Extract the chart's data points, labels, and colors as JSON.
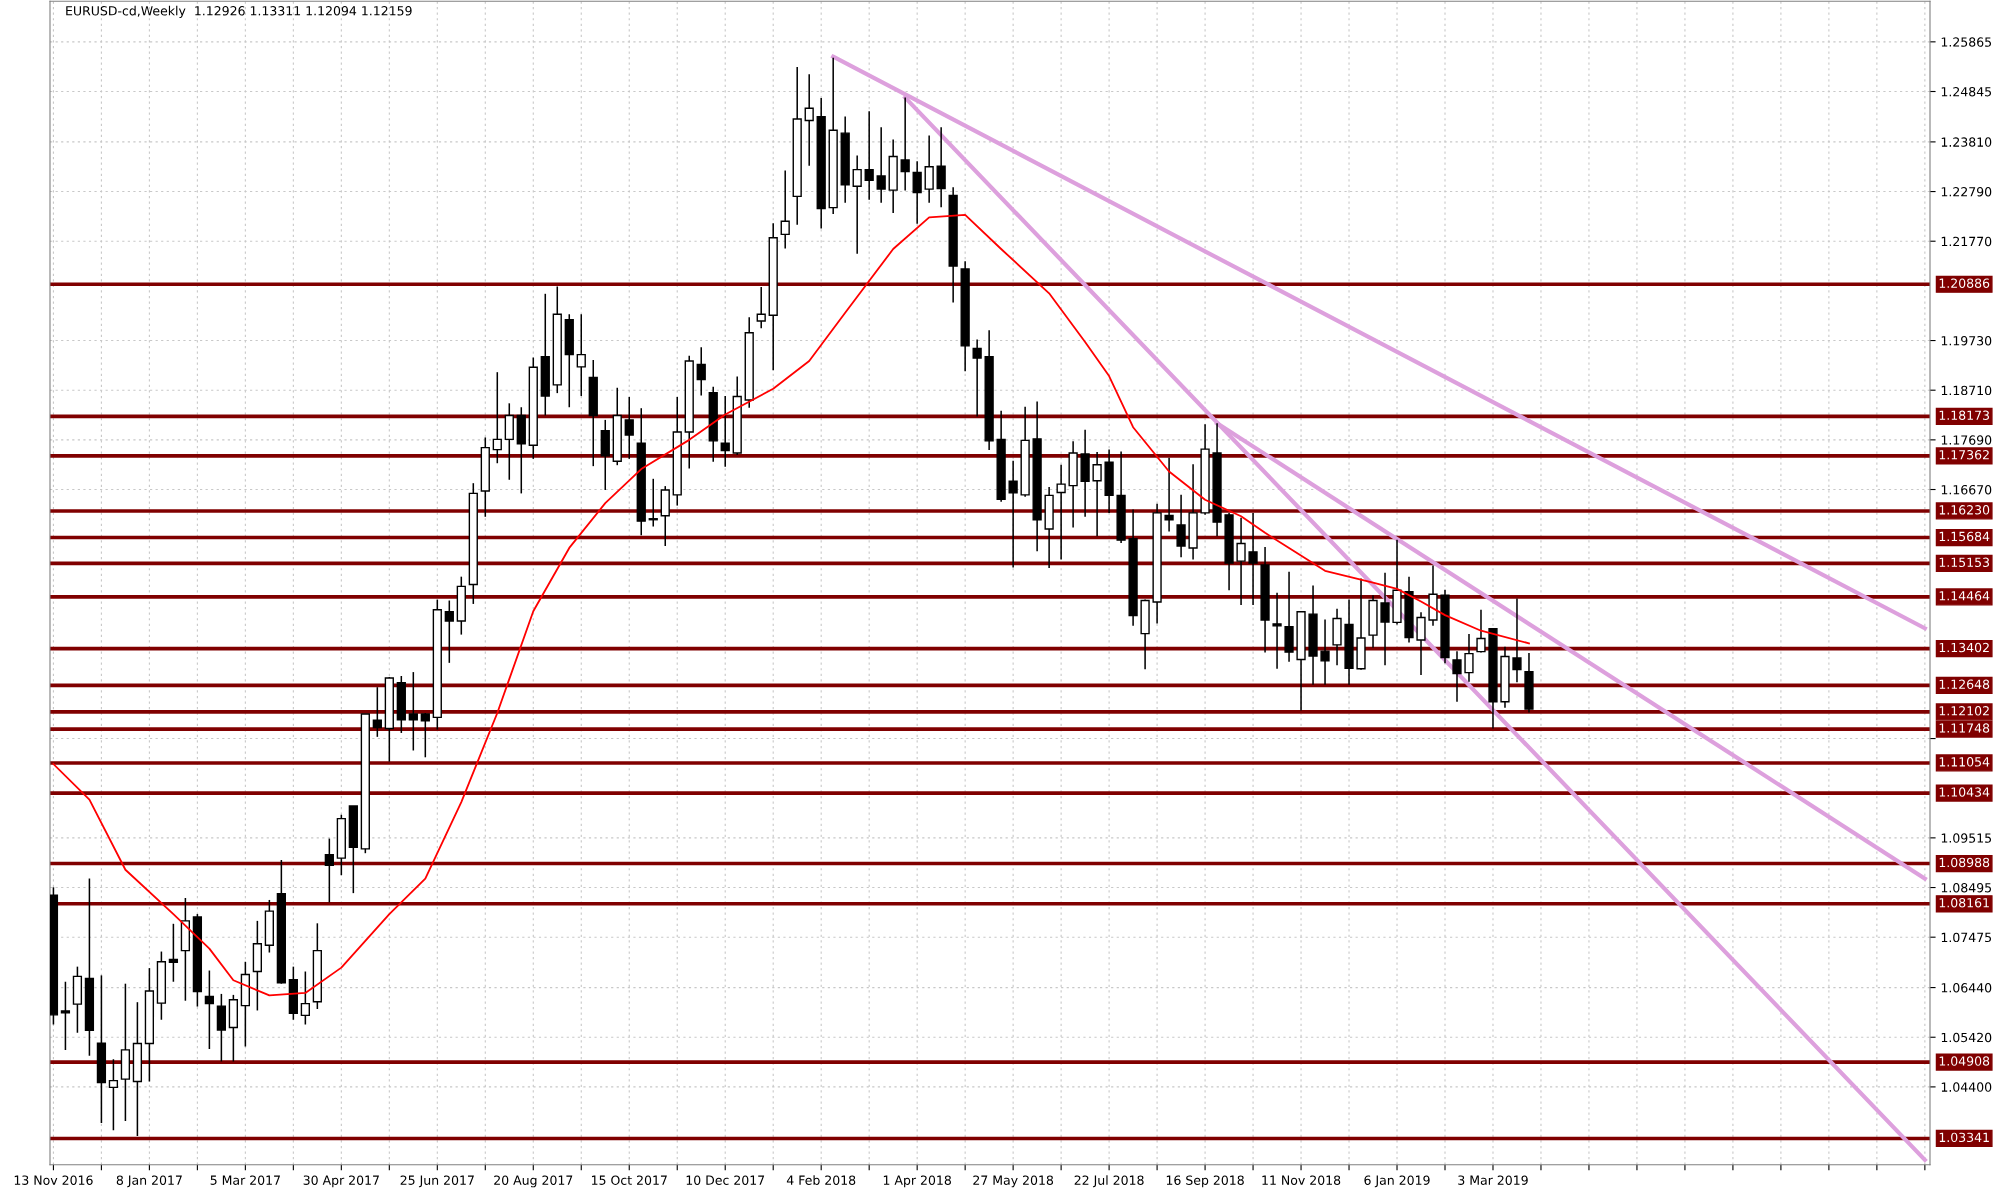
{
  "chart_data": {
    "type": "candlestick",
    "title": "EURUSD-cd,Weekly  1.12926 1.13311 1.12094 1.12159",
    "x": [
      "2016-11-13",
      "2016-11-20",
      "2016-11-27",
      "2016-12-04",
      "2016-12-11",
      "2016-12-18",
      "2016-12-25",
      "2017-01-01",
      "2017-01-08",
      "2017-01-15",
      "2017-01-22",
      "2017-01-29",
      "2017-02-05",
      "2017-02-12",
      "2017-02-19",
      "2017-02-26",
      "2017-03-05",
      "2017-03-12",
      "2017-03-19",
      "2017-03-26",
      "2017-04-02",
      "2017-04-09",
      "2017-04-16",
      "2017-04-23",
      "2017-04-30",
      "2017-05-07",
      "2017-05-14",
      "2017-05-21",
      "2017-05-28",
      "2017-06-04",
      "2017-06-11",
      "2017-06-18",
      "2017-06-25",
      "2017-07-02",
      "2017-07-09",
      "2017-07-16",
      "2017-07-23",
      "2017-07-30",
      "2017-08-06",
      "2017-08-13",
      "2017-08-20",
      "2017-08-27",
      "2017-09-03",
      "2017-09-10",
      "2017-09-17",
      "2017-09-24",
      "2017-10-01",
      "2017-10-08",
      "2017-10-15",
      "2017-10-22",
      "2017-10-29",
      "2017-11-05",
      "2017-11-12",
      "2017-11-19",
      "2017-11-26",
      "2017-12-03",
      "2017-12-10",
      "2017-12-17",
      "2017-12-24",
      "2017-12-31",
      "2018-01-07",
      "2018-01-14",
      "2018-01-21",
      "2018-01-28",
      "2018-02-04",
      "2018-02-11",
      "2018-02-18",
      "2018-02-25",
      "2018-03-04",
      "2018-03-11",
      "2018-03-18",
      "2018-03-25",
      "2018-04-01",
      "2018-04-08",
      "2018-04-15",
      "2018-04-22",
      "2018-04-29",
      "2018-05-06",
      "2018-05-13",
      "2018-05-20",
      "2018-05-27",
      "2018-06-03",
      "2018-06-10",
      "2018-06-17",
      "2018-06-24",
      "2018-07-01",
      "2018-07-08",
      "2018-07-15",
      "2018-07-22",
      "2018-07-29",
      "2018-08-05",
      "2018-08-12",
      "2018-08-19",
      "2018-08-26",
      "2018-09-02",
      "2018-09-09",
      "2018-09-16",
      "2018-09-23",
      "2018-09-30",
      "2018-10-07",
      "2018-10-14",
      "2018-10-21",
      "2018-10-28",
      "2018-11-04",
      "2018-11-11",
      "2018-11-18",
      "2018-11-25",
      "2018-12-02",
      "2018-12-09",
      "2018-12-16",
      "2018-12-23",
      "2018-12-30",
      "2019-01-06",
      "2019-01-13",
      "2019-01-20",
      "2019-01-27",
      "2019-02-03",
      "2019-02-10",
      "2019-02-17",
      "2019-02-24",
      "2019-03-03",
      "2019-03-10",
      "2019-03-17",
      "2019-03-24"
    ],
    "ohlc": [
      [
        1.0834,
        1.085,
        1.0568,
        1.0588
      ],
      [
        1.0596,
        1.0656,
        1.0516,
        1.0592
      ],
      [
        1.061,
        1.0687,
        1.0551,
        1.0667
      ],
      [
        1.0663,
        1.0868,
        1.0504,
        1.0556
      ],
      [
        1.053,
        1.0669,
        1.0366,
        1.0449
      ],
      [
        1.0439,
        1.0497,
        1.0351,
        1.0453
      ],
      [
        1.0456,
        1.0652,
        1.037,
        1.0516
      ],
      [
        1.0451,
        1.0614,
        1.0339,
        1.0529
      ],
      [
        1.0529,
        1.0684,
        1.0451,
        1.0637
      ],
      [
        1.0612,
        1.0718,
        1.0578,
        1.0697
      ],
      [
        1.0702,
        1.0775,
        1.0656,
        1.0696
      ],
      [
        1.072,
        1.0828,
        1.0617,
        1.0781
      ],
      [
        1.0789,
        1.0795,
        1.0605,
        1.0636
      ],
      [
        1.0626,
        1.0679,
        1.0518,
        1.0611
      ],
      [
        1.0606,
        1.0631,
        1.0492,
        1.0557
      ],
      [
        1.0562,
        1.0629,
        1.0492,
        1.0619
      ],
      [
        1.0607,
        1.0697,
        1.0523,
        1.0671
      ],
      [
        1.0677,
        1.0781,
        1.0597,
        1.0734
      ],
      [
        1.0731,
        1.0824,
        1.0716,
        1.0801
      ],
      [
        1.0837,
        1.0906,
        1.0652,
        1.0654
      ],
      [
        1.066,
        1.0687,
        1.0578,
        1.0591
      ],
      [
        1.0587,
        1.0677,
        1.0568,
        1.0611
      ],
      [
        1.0615,
        1.0776,
        1.06,
        1.072
      ],
      [
        1.0917,
        1.095,
        1.0819,
        1.0895
      ],
      [
        1.091,
        1.0999,
        1.0875,
        1.0991
      ],
      [
        1.1017,
        1.1017,
        1.0838,
        1.0932
      ],
      [
        1.0929,
        1.1206,
        1.092,
        1.1206
      ],
      [
        1.1193,
        1.1261,
        1.1159,
        1.1178
      ],
      [
        1.1176,
        1.1282,
        1.1108,
        1.128
      ],
      [
        1.127,
        1.1284,
        1.1167,
        1.1194
      ],
      [
        1.1206,
        1.1292,
        1.1131,
        1.1194
      ],
      [
        1.1206,
        1.1208,
        1.1117,
        1.1192
      ],
      [
        1.1199,
        1.1441,
        1.1174,
        1.142
      ],
      [
        1.1416,
        1.1439,
        1.1311,
        1.1397
      ],
      [
        1.1397,
        1.1488,
        1.1369,
        1.1468
      ],
      [
        1.1472,
        1.168,
        1.1432,
        1.1659
      ],
      [
        1.1664,
        1.1774,
        1.1611,
        1.1753
      ],
      [
        1.1749,
        1.1908,
        1.1721,
        1.177
      ],
      [
        1.177,
        1.1844,
        1.1687,
        1.1819
      ],
      [
        1.1819,
        1.1836,
        1.1659,
        1.1761
      ],
      [
        1.1758,
        1.1938,
        1.173,
        1.1918
      ],
      [
        1.194,
        1.2069,
        1.1819,
        1.1859
      ],
      [
        1.1882,
        1.2084,
        1.1865,
        1.2027
      ],
      [
        1.2016,
        1.2027,
        1.1836,
        1.1944
      ],
      [
        1.1919,
        1.2027,
        1.1859,
        1.1944
      ],
      [
        1.1897,
        1.1933,
        1.1715,
        1.1819
      ],
      [
        1.1788,
        1.181,
        1.1666,
        1.1736
      ],
      [
        1.1725,
        1.1876,
        1.1717,
        1.1819
      ],
      [
        1.181,
        1.1857,
        1.173,
        1.1779
      ],
      [
        1.1762,
        1.1834,
        1.1573,
        1.1602
      ],
      [
        1.1607,
        1.1689,
        1.1591,
        1.1605
      ],
      [
        1.1613,
        1.1674,
        1.1551,
        1.1666
      ],
      [
        1.1656,
        1.1857,
        1.1634,
        1.1785
      ],
      [
        1.1785,
        1.1942,
        1.171,
        1.1931
      ],
      [
        1.1924,
        1.1959,
        1.186,
        1.1893
      ],
      [
        1.1866,
        1.1878,
        1.1724,
        1.1767
      ],
      [
        1.1762,
        1.1859,
        1.1714,
        1.1747
      ],
      [
        1.1742,
        1.1899,
        1.1738,
        1.1858
      ],
      [
        1.1851,
        1.2021,
        1.1835,
        1.1989
      ],
      [
        1.2013,
        1.2083,
        1.1998,
        1.2027
      ],
      [
        1.2025,
        1.2214,
        1.1912,
        1.2184
      ],
      [
        1.2191,
        1.2322,
        1.2162,
        1.2218
      ],
      [
        1.2269,
        1.2535,
        1.2211,
        1.2428
      ],
      [
        1.2425,
        1.252,
        1.2332,
        1.245
      ],
      [
        1.2433,
        1.2471,
        1.2203,
        1.2244
      ],
      [
        1.2246,
        1.2554,
        1.2233,
        1.2405
      ],
      [
        1.2399,
        1.2433,
        1.2256,
        1.2293
      ],
      [
        1.229,
        1.2353,
        1.2151,
        1.2324
      ],
      [
        1.2324,
        1.2444,
        1.2262,
        1.2302
      ],
      [
        1.2311,
        1.2411,
        1.2256,
        1.2284
      ],
      [
        1.2282,
        1.2386,
        1.2235,
        1.2351
      ],
      [
        1.2344,
        1.2472,
        1.2281,
        1.232
      ],
      [
        1.2318,
        1.2341,
        1.2213,
        1.2277
      ],
      [
        1.2284,
        1.2394,
        1.2256,
        1.233
      ],
      [
        1.2331,
        1.2411,
        1.2247,
        1.2285
      ],
      [
        1.2271,
        1.2288,
        1.2051,
        1.2126
      ],
      [
        1.212,
        1.2136,
        1.191,
        1.1962
      ],
      [
        1.1957,
        1.1975,
        1.1817,
        1.1937
      ],
      [
        1.194,
        1.1994,
        1.1748,
        1.1767
      ],
      [
        1.177,
        1.1829,
        1.1642,
        1.1647
      ],
      [
        1.1684,
        1.1726,
        1.1507,
        1.166
      ],
      [
        1.1656,
        1.1837,
        1.1652,
        1.1768
      ],
      [
        1.1771,
        1.1848,
        1.154,
        1.1605
      ],
      [
        1.1586,
        1.1672,
        1.1506,
        1.1655
      ],
      [
        1.1661,
        1.1718,
        1.1523,
        1.1678
      ],
      [
        1.1675,
        1.1766,
        1.1589,
        1.1742
      ],
      [
        1.174,
        1.179,
        1.1611,
        1.1684
      ],
      [
        1.1685,
        1.1744,
        1.1571,
        1.1718
      ],
      [
        1.1723,
        1.1749,
        1.1619,
        1.1655
      ],
      [
        1.1655,
        1.1745,
        1.1557,
        1.1563
      ],
      [
        1.1566,
        1.1626,
        1.1387,
        1.1408
      ],
      [
        1.1371,
        1.1441,
        1.1298,
        1.1439
      ],
      [
        1.1436,
        1.1638,
        1.1392,
        1.1619
      ],
      [
        1.1614,
        1.1732,
        1.1581,
        1.1605
      ],
      [
        1.1594,
        1.1656,
        1.1528,
        1.1551
      ],
      [
        1.1547,
        1.1719,
        1.1523,
        1.1619
      ],
      [
        1.1619,
        1.1801,
        1.1615,
        1.175
      ],
      [
        1.1742,
        1.1803,
        1.1571,
        1.16
      ],
      [
        1.1615,
        1.1619,
        1.146,
        1.1516
      ],
      [
        1.152,
        1.1609,
        1.143,
        1.1556
      ],
      [
        1.1539,
        1.1619,
        1.143,
        1.1516
      ],
      [
        1.1512,
        1.1549,
        1.1332,
        1.1399
      ],
      [
        1.1391,
        1.1455,
        1.1299,
        1.1387
      ],
      [
        1.1385,
        1.1498,
        1.1313,
        1.1333
      ],
      [
        1.1318,
        1.1417,
        1.1213,
        1.1416
      ],
      [
        1.1411,
        1.147,
        1.1266,
        1.1325
      ],
      [
        1.1335,
        1.14,
        1.1266,
        1.1315
      ],
      [
        1.1348,
        1.1422,
        1.1306,
        1.1402
      ],
      [
        1.139,
        1.1441,
        1.1266,
        1.13
      ],
      [
        1.1299,
        1.1484,
        1.1297,
        1.1362
      ],
      [
        1.1368,
        1.145,
        1.1342,
        1.1439
      ],
      [
        1.1434,
        1.1496,
        1.1306,
        1.1395
      ],
      [
        1.1394,
        1.1564,
        1.139,
        1.146
      ],
      [
        1.1457,
        1.1488,
        1.1353,
        1.1363
      ],
      [
        1.1358,
        1.1415,
        1.1286,
        1.1404
      ],
      [
        1.1399,
        1.1511,
        1.1387,
        1.1452
      ],
      [
        1.145,
        1.1461,
        1.131,
        1.1322
      ],
      [
        1.1317,
        1.1335,
        1.1231,
        1.1289
      ],
      [
        1.1291,
        1.137,
        1.1272,
        1.133
      ],
      [
        1.1334,
        1.142,
        1.1332,
        1.1361
      ],
      [
        1.1381,
        1.1381,
        1.1176,
        1.1231
      ],
      [
        1.1231,
        1.1344,
        1.1219,
        1.1324
      ],
      [
        1.1321,
        1.1443,
        1.1271,
        1.1297
      ],
      [
        1.1293,
        1.1331,
        1.1209,
        1.1216
      ]
    ],
    "series": [
      {
        "type": "line",
        "color": "#ff0000",
        "x": [
          "2016-11-13",
          "2016-12-04",
          "2016-12-25",
          "2017-01-22",
          "2017-02-12",
          "2017-02-26",
          "2017-03-19",
          "2017-04-09",
          "2017-04-30",
          "2017-05-28",
          "2017-06-18",
          "2017-07-09",
          "2017-07-30",
          "2017-08-20",
          "2017-09-10",
          "2017-10-01",
          "2017-10-22",
          "2017-11-19",
          "2017-12-10",
          "2018-01-07",
          "2018-01-28",
          "2018-02-18",
          "2018-03-18",
          "2018-04-08",
          "2018-04-29",
          "2018-05-20",
          "2018-06-17",
          "2018-07-08",
          "2018-07-22",
          "2018-08-05",
          "2018-08-26",
          "2018-09-16",
          "2018-10-07",
          "2018-10-21",
          "2018-11-04",
          "2018-11-25",
          "2018-12-23",
          "2019-01-06",
          "2019-01-20",
          "2019-02-03",
          "2019-02-24",
          "2019-03-24"
        ],
        "values": [
          1.1103,
          1.103,
          1.0886,
          1.0795,
          1.0724,
          1.0659,
          1.0628,
          1.0633,
          1.0685,
          1.0795,
          1.0868,
          1.1025,
          1.1208,
          1.1417,
          1.1547,
          1.1639,
          1.1709,
          1.1769,
          1.1821,
          1.1874,
          1.1931,
          1.203,
          1.2161,
          1.2226,
          1.2231,
          1.2161,
          1.207,
          1.197,
          1.19,
          1.1795,
          1.1704,
          1.1646,
          1.1612,
          1.1578,
          1.1547,
          1.15,
          1.1476,
          1.1463,
          1.1437,
          1.1409,
          1.1377,
          1.1351
        ]
      },
      {
        "type": "line",
        "color": "#dda0dd",
        "x": [
          "2018-02-11",
          "2019-11-10"
        ],
        "values": [
          1.2556,
          1.1382
        ]
      },
      {
        "type": "line",
        "color": "#dda0dd",
        "x": [
          "2018-03-25",
          "2019-11-10"
        ],
        "values": [
          1.2472,
          1.029
        ]
      },
      {
        "type": "line",
        "color": "#dda0dd",
        "x": [
          "2018-09-23",
          "2019-11-10"
        ],
        "values": [
          1.1803,
          1.0868
        ]
      }
    ],
    "ref_lines": [
      {
        "axis": "y",
        "value": 1.20886,
        "label": "1.20886",
        "color": "#800000"
      },
      {
        "axis": "y",
        "value": 1.18173,
        "label": "1.18173",
        "color": "#800000"
      },
      {
        "axis": "y",
        "value": 1.17362,
        "label": "1.17362",
        "color": "#800000"
      },
      {
        "axis": "y",
        "value": 1.1623,
        "label": "1.16230",
        "color": "#800000"
      },
      {
        "axis": "y",
        "value": 1.15684,
        "label": "1.15684",
        "color": "#800000"
      },
      {
        "axis": "y",
        "value": 1.15153,
        "label": "1.15153",
        "color": "#800000"
      },
      {
        "axis": "y",
        "value": 1.14464,
        "label": "1.14464",
        "color": "#800000"
      },
      {
        "axis": "y",
        "value": 1.13402,
        "label": "1.13402",
        "color": "#800000"
      },
      {
        "axis": "y",
        "value": 1.12648,
        "label": "1.12648",
        "color": "#800000"
      },
      {
        "axis": "y",
        "value": 1.12102,
        "label": "1.12102",
        "color": "#800000"
      },
      {
        "axis": "y",
        "value": 1.11748,
        "label": "1.11748",
        "color": "#800000"
      },
      {
        "axis": "y",
        "value": 1.11054,
        "label": "1.11054",
        "color": "#800000"
      },
      {
        "axis": "y",
        "value": 1.10434,
        "label": "1.10434",
        "color": "#800000"
      },
      {
        "axis": "y",
        "value": 1.08988,
        "label": "1.08988",
        "color": "#800000"
      },
      {
        "axis": "y",
        "value": 1.08161,
        "label": "1.08161",
        "color": "#800000"
      },
      {
        "axis": "y",
        "value": 1.04908,
        "label": "1.04908",
        "color": "#800000"
      },
      {
        "axis": "y",
        "value": 1.03341,
        "label": "1.03341",
        "color": "#800000"
      }
    ],
    "xlim": [
      "2016-11-11",
      "2019-11-13"
    ],
    "xticks": [
      {
        "value": "2016-11-13",
        "label": "13 Nov 2016"
      },
      {
        "value": "2016-12-11",
        "label": null
      },
      {
        "value": "2017-01-08",
        "label": "8 Jan 2017"
      },
      {
        "value": "2017-02-05",
        "label": null
      },
      {
        "value": "2017-03-05",
        "label": "5 Mar 2017"
      },
      {
        "value": "2017-04-02",
        "label": null
      },
      {
        "value": "2017-04-30",
        "label": "30 Apr 2017"
      },
      {
        "value": "2017-05-28",
        "label": null
      },
      {
        "value": "2017-06-25",
        "label": "25 Jun 2017"
      },
      {
        "value": "2017-07-23",
        "label": null
      },
      {
        "value": "2017-08-20",
        "label": "20 Aug 2017"
      },
      {
        "value": "2017-09-17",
        "label": null
      },
      {
        "value": "2017-10-15",
        "label": "15 Oct 2017"
      },
      {
        "value": "2017-11-12",
        "label": null
      },
      {
        "value": "2017-12-10",
        "label": "10 Dec 2017"
      },
      {
        "value": "2018-01-07",
        "label": null
      },
      {
        "value": "2018-02-04",
        "label": "4 Feb 2018"
      },
      {
        "value": "2018-03-04",
        "label": null
      },
      {
        "value": "2018-04-01",
        "label": "1 Apr 2018"
      },
      {
        "value": "2018-04-29",
        "label": null
      },
      {
        "value": "2018-05-27",
        "label": "27 May 2018"
      },
      {
        "value": "2018-06-24",
        "label": null
      },
      {
        "value": "2018-07-22",
        "label": "22 Jul 2018"
      },
      {
        "value": "2018-08-19",
        "label": null
      },
      {
        "value": "2018-09-16",
        "label": "16 Sep 2018"
      },
      {
        "value": "2018-10-14",
        "label": null
      },
      {
        "value": "2018-11-11",
        "label": "11 Nov 2018"
      },
      {
        "value": "2018-12-09",
        "label": null
      },
      {
        "value": "2019-01-06",
        "label": "6 Jan 2019"
      },
      {
        "value": "2019-02-03",
        "label": null
      },
      {
        "value": "2019-03-03",
        "label": "3 Mar 2019"
      },
      {
        "value": "2019-03-31",
        "label": null
      },
      {
        "value": "2019-04-28",
        "label": null
      },
      {
        "value": "2019-05-26",
        "label": null
      },
      {
        "value": "2019-06-23",
        "label": null
      },
      {
        "value": "2019-07-21",
        "label": null
      },
      {
        "value": "2019-08-18",
        "label": null
      },
      {
        "value": "2019-09-15",
        "label": null
      },
      {
        "value": "2019-10-13",
        "label": null
      },
      {
        "value": "2019-11-10",
        "label": null
      }
    ],
    "ylim": [
      1.028,
      1.267
    ],
    "yticks": [
      1.25865,
      1.24845,
      {
        "value": 1.2381,
        "label": "1.23810"
      },
      {
        "value": 1.2279,
        "label": "1.22790"
      },
      {
        "value": 1.2177,
        "label": "1.21770"
      },
      {
        "value": 1.1973,
        "label": "1.19730"
      },
      {
        "value": 1.1871,
        "label": "1.18710"
      },
      {
        "value": 1.1769,
        "label": "1.17690"
      },
      {
        "value": 1.1667,
        "label": "1.16670"
      },
      {
        "value": 1.11555,
        "label": null
      },
      1.09515,
      1.08495,
      1.07475,
      {
        "value": 1.0644,
        "label": "1.06440"
      },
      {
        "value": 1.0542,
        "label": "1.05420"
      },
      {
        "value": 1.044,
        "label": "1.04400"
      }
    ],
    "grid": true
  }
}
